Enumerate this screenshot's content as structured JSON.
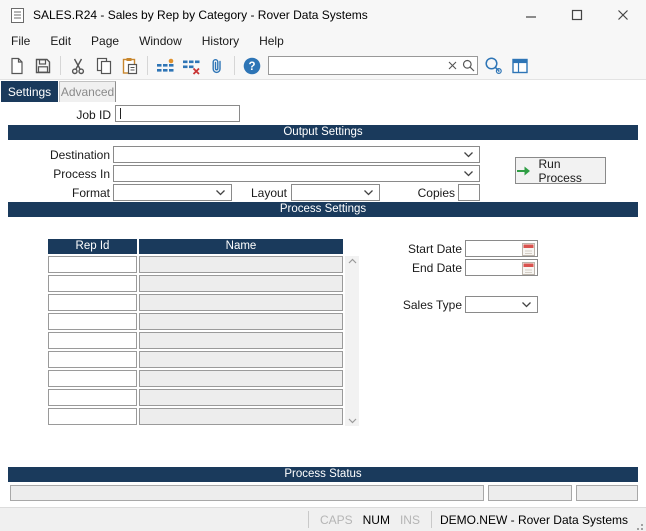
{
  "colors": {
    "navy": "#1a3a5c",
    "icon_blue": "#2e75b6",
    "run_arrow_green": "#2f9e44",
    "calendar_red": "#d9534f"
  },
  "window": {
    "title": "SALES.R24 - Sales by Rep by Category - Rover Data Systems"
  },
  "menu": {
    "items": [
      "File",
      "Edit",
      "Page",
      "Window",
      "History",
      "Help"
    ]
  },
  "toolbar": {
    "icons": [
      "new-document",
      "save",
      "cut",
      "copy",
      "paste",
      "insert-rows",
      "delete-rows",
      "attachment",
      "help",
      "clear-search",
      "search",
      "find-preview",
      "layout"
    ],
    "search": {
      "value": "",
      "placeholder": ""
    }
  },
  "tabs": {
    "settings": "Settings",
    "advanced": "Advanced"
  },
  "job": {
    "label": "Job ID",
    "value": ""
  },
  "output": {
    "header": "Output Settings",
    "destination": {
      "label": "Destination",
      "value": ""
    },
    "process_in": {
      "label": "Process In",
      "value": ""
    },
    "format": {
      "label": "Format",
      "value": ""
    },
    "layout": {
      "label": "Layout",
      "value": ""
    },
    "copies": {
      "label": "Copies",
      "value": ""
    },
    "run_button": "Run Process"
  },
  "process": {
    "header": "Process Settings",
    "grid": {
      "columns": [
        "Rep Id",
        "Name"
      ],
      "row_count": 9
    },
    "start_date": {
      "label": "Start Date",
      "value": ""
    },
    "end_date": {
      "label": "End Date",
      "value": ""
    },
    "sales_type": {
      "label": "Sales Type",
      "value": ""
    }
  },
  "status_section": {
    "header": "Process Status",
    "message": "",
    "field2": "",
    "field3": ""
  },
  "statusbar": {
    "caps": "CAPS",
    "num": "NUM",
    "ins": "INS",
    "context": "DEMO.NEW - Rover Data Systems"
  }
}
